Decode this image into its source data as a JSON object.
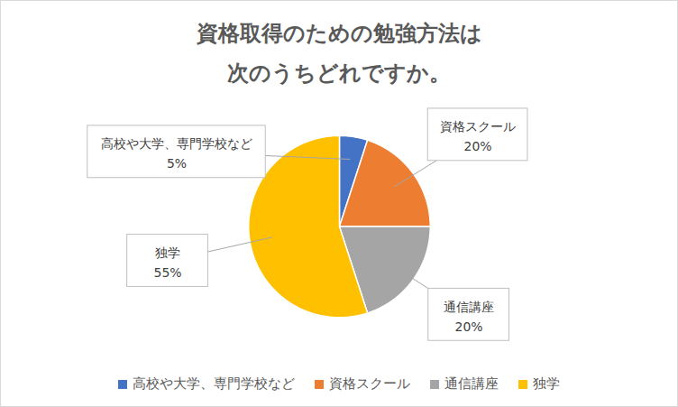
{
  "chart_data": {
    "type": "pie",
    "title": "資格取得のための勉強方法は\n次のうちどれですか。",
    "categories": [
      "高校や大学、専門学校など",
      "資格スクール",
      "通信講座",
      "独学"
    ],
    "values": [
      5,
      20,
      20,
      55
    ],
    "value_labels": [
      "5%",
      "20%",
      "20%",
      "55%"
    ],
    "colors": [
      "#4472c4",
      "#ed7d31",
      "#a5a5a5",
      "#ffc000"
    ],
    "data_labels": true,
    "legend": "bottom"
  }
}
